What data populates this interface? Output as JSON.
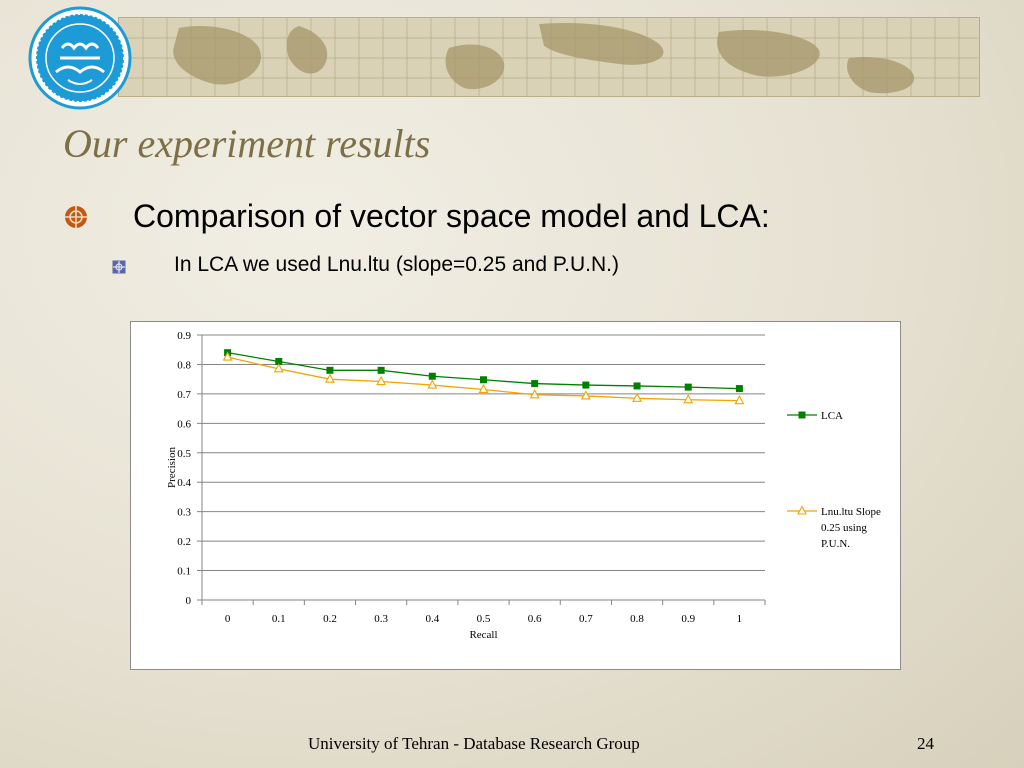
{
  "slide": {
    "title": "Our experiment results",
    "bullet_1": "Comparison of vector space model and LCA:",
    "bullet_2": "In LCA we used Lnu.ltu (slope=0.25 and P.U.N.)",
    "footer": "University  of Tehran - Database Research Group",
    "page_number": "24",
    "logo_name": "university-of-tehran-logo",
    "banner_name": "world-map-banner"
  },
  "colors": {
    "title": "#7d7046",
    "bullet_main": "#c0581a",
    "bullet_sub": "#5a66a8",
    "series_lca": "#008000",
    "series_lnu": "#f4a300"
  },
  "chart_data": {
    "type": "line",
    "xlabel": "Recall",
    "ylabel": "Precision",
    "x": [
      0,
      0.1,
      0.2,
      0.3,
      0.4,
      0.5,
      0.6,
      0.7,
      0.8,
      0.9,
      1
    ],
    "x_tick_labels": [
      "0",
      "0.1",
      "0.2",
      "0.3",
      "0.4",
      "0.5",
      "0.6",
      "0.7",
      "0.8",
      "0.9",
      "1"
    ],
    "y_tick_labels": [
      "0",
      "0.1",
      "0.2",
      "0.3",
      "0.4",
      "0.5",
      "0.6",
      "0.7",
      "0.8",
      "0.9"
    ],
    "ylim": [
      0,
      0.9
    ],
    "grid": true,
    "legend_position": "right",
    "series": [
      {
        "name": "LCA",
        "marker": "square",
        "color": "#008000",
        "values": [
          0.84,
          0.81,
          0.78,
          0.78,
          0.76,
          0.748,
          0.735,
          0.73,
          0.727,
          0.723,
          0.718
        ]
      },
      {
        "name": "Lnu.ltu Slope 0.25 using P.U.N.",
        "legend_lines": [
          "Lnu.ltu Slope",
          "0.25 using",
          "P.U.N."
        ],
        "marker": "triangle",
        "color": "#f4a300",
        "values": [
          0.825,
          0.785,
          0.75,
          0.742,
          0.73,
          0.715,
          0.697,
          0.693,
          0.685,
          0.68,
          0.677
        ]
      }
    ]
  }
}
